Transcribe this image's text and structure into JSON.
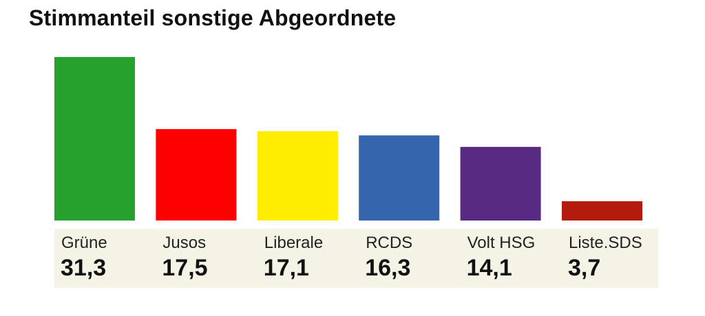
{
  "chart_data": {
    "type": "bar",
    "title": "Stimmanteil sonstige Abgeordnete",
    "xlabel": "",
    "ylabel": "",
    "ylim": [
      0,
      31.3
    ],
    "grid": false,
    "legend": "none",
    "categories": [
      "Grüne",
      "Jusos",
      "Liberale",
      "RCDS",
      "Volt HSG",
      "Liste.SDS"
    ],
    "values": [
      31.3,
      17.5,
      17.1,
      16.3,
      14.1,
      3.7
    ],
    "value_labels": [
      "31,3",
      "17,5",
      "17,1",
      "16,3",
      "14,1",
      "3,7"
    ],
    "colors": [
      "#27a12e",
      "#ff0000",
      "#ffed00",
      "#3465ad",
      "#582a81",
      "#b31b0c"
    ]
  }
}
